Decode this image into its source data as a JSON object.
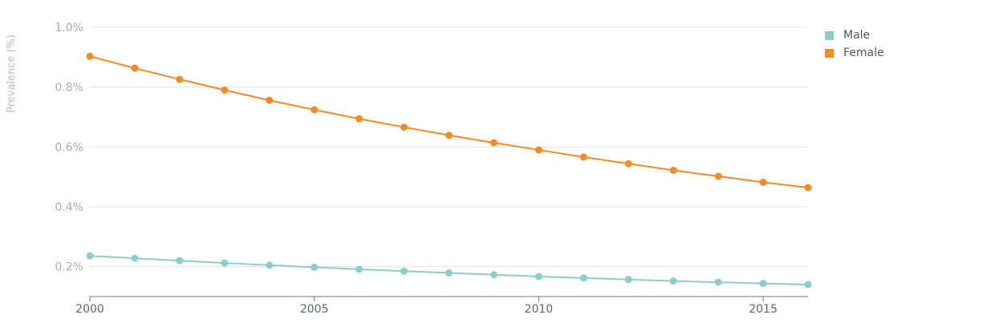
{
  "chart_data": {
    "type": "line",
    "title": "",
    "xlabel": "",
    "ylabel": "Prevalence (%)",
    "x": [
      2000,
      2001,
      2002,
      2003,
      2004,
      2005,
      2006,
      2007,
      2008,
      2009,
      2010,
      2011,
      2012,
      2013,
      2014,
      2015,
      2016
    ],
    "xlim": [
      2000,
      2016
    ],
    "ylim": [
      0.1,
      1.0
    ],
    "x_ticks": [
      {
        "value": 2000,
        "label": "2000"
      },
      {
        "value": 2005,
        "label": "2005"
      },
      {
        "value": 2010,
        "label": "2010"
      },
      {
        "value": 2015,
        "label": "2015"
      }
    ],
    "y_ticks": [
      {
        "value": 0.2,
        "label": "0.2%"
      },
      {
        "value": 0.4,
        "label": "0.4%"
      },
      {
        "value": 0.6,
        "label": "0.6%"
      },
      {
        "value": 0.8,
        "label": "0.8%"
      },
      {
        "value": 1.0,
        "label": "1.0%"
      }
    ],
    "grid": true,
    "legend_position": "top-right",
    "series": [
      {
        "name": "Male",
        "color": "#8ecbcb",
        "values": [
          0.236,
          0.228,
          0.22,
          0.212,
          0.205,
          0.198,
          0.191,
          0.185,
          0.179,
          0.173,
          0.167,
          0.162,
          0.157,
          0.152,
          0.148,
          0.144,
          0.14
        ]
      },
      {
        "name": "Female",
        "color": "#f38b26",
        "values": [
          0.903,
          0.863,
          0.826,
          0.79,
          0.756,
          0.724,
          0.694,
          0.666,
          0.639,
          0.614,
          0.59,
          0.566,
          0.544,
          0.522,
          0.502,
          0.482,
          0.464
        ]
      }
    ]
  }
}
